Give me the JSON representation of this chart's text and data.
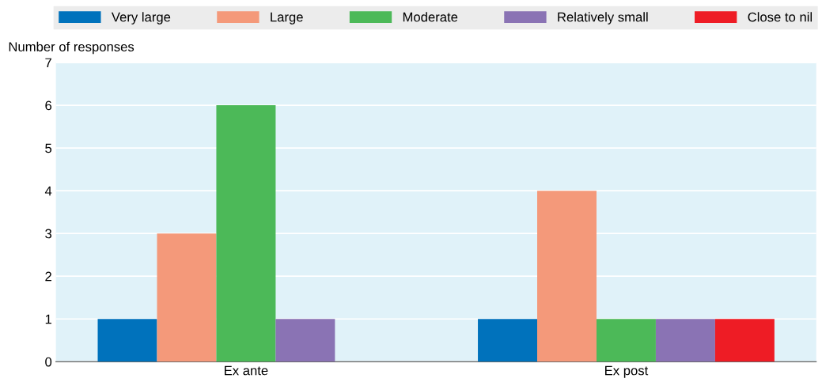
{
  "chart_data": {
    "type": "bar",
    "ylabel": "Number of responses",
    "categories": [
      "Ex ante",
      "Ex post"
    ],
    "series": [
      {
        "name": "Very large",
        "color": "#0072bc",
        "values": [
          1,
          1
        ]
      },
      {
        "name": "Large",
        "color": "#f4997a",
        "values": [
          3,
          4
        ]
      },
      {
        "name": "Moderate",
        "color": "#4cb958",
        "values": [
          6,
          1
        ]
      },
      {
        "name": "Relatively small",
        "color": "#8a73b4",
        "values": [
          1,
          1
        ]
      },
      {
        "name": "Close to nil",
        "color": "#ee1c25",
        "values": [
          0,
          1
        ]
      }
    ],
    "ylim": [
      0,
      7
    ],
    "yticks": [
      0,
      1,
      2,
      3,
      4,
      5,
      6,
      7
    ],
    "grid": "y",
    "legend": "top"
  }
}
